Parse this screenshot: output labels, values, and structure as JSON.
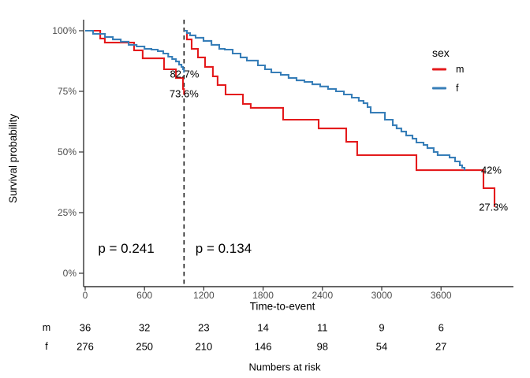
{
  "chart_data": {
    "type": "line",
    "subtype": "kaplan_meier_landmark_survival",
    "title": "",
    "xlabel": "Time-to-event",
    "ylabel": "Survival probability",
    "grid": false,
    "x_axis": {
      "ticks": [
        0,
        600,
        1200,
        1800,
        2400,
        3000,
        3600
      ],
      "range": [
        0,
        4340
      ]
    },
    "y_axis": {
      "ticks": [
        {
          "value": 0,
          "label": "0%"
        },
        {
          "value": 25,
          "label": "25%"
        },
        {
          "value": 50,
          "label": "50%"
        },
        {
          "value": 75,
          "label": "75%"
        },
        {
          "value": 100,
          "label": "100%"
        }
      ],
      "range": [
        0,
        100
      ]
    },
    "landmark_x": 1000,
    "legend": {
      "title": "sex",
      "position": "right",
      "items": [
        {
          "label": "m",
          "color": "#e41a1c"
        },
        {
          "label": "f",
          "color": "#377eb8"
        }
      ]
    },
    "series": [
      {
        "name": "m",
        "color": "#e41a1c",
        "segments": [
          [
            [
              0,
              100
            ],
            [
              152,
              96.8
            ],
            [
              199,
              95.1
            ],
            [
              495,
              91.9
            ],
            [
              582,
              88.6
            ],
            [
              798,
              84.1
            ],
            [
              918,
              80.5
            ],
            [
              989,
              76.0
            ],
            [
              1000,
              73.6
            ]
          ],
          [
            [
              1000,
              100
            ],
            [
              1029,
              96.4
            ],
            [
              1077,
              92.5
            ],
            [
              1141,
              89.0
            ],
            [
              1213,
              85.1
            ],
            [
              1292,
              81.2
            ],
            [
              1340,
              77.6
            ],
            [
              1420,
              73.7
            ],
            [
              1596,
              69.8
            ],
            [
              1675,
              68.2
            ],
            [
              2003,
              63.3
            ],
            [
              2362,
              59.7
            ],
            [
              2641,
              54.2
            ],
            [
              2752,
              48.7
            ],
            [
              3351,
              42.5
            ],
            [
              4029,
              35.1
            ],
            [
              4141,
              27.3
            ]
          ]
        ]
      },
      {
        "name": "f",
        "color": "#377eb8",
        "segments": [
          [
            [
              0,
              100
            ],
            [
              80,
              98.7
            ],
            [
              200,
              97.4
            ],
            [
              280,
              96.4
            ],
            [
              360,
              95.5
            ],
            [
              440,
              94.2
            ],
            [
              520,
              93.5
            ],
            [
              600,
              92.5
            ],
            [
              670,
              92.2
            ],
            [
              735,
              91.6
            ],
            [
              790,
              90.6
            ],
            [
              840,
              89.3
            ],
            [
              880,
              88.3
            ],
            [
              918,
              87.3
            ],
            [
              950,
              86.0
            ],
            [
              974,
              85.1
            ],
            [
              990,
              84.1
            ],
            [
              1000,
              82.7
            ]
          ],
          [
            [
              1000,
              100
            ],
            [
              1029,
              99.0
            ],
            [
              1061,
              98.1
            ],
            [
              1117,
              97.1
            ],
            [
              1197,
              95.8
            ],
            [
              1277,
              94.2
            ],
            [
              1356,
              92.5
            ],
            [
              1412,
              92.2
            ],
            [
              1492,
              90.6
            ],
            [
              1572,
              89.0
            ],
            [
              1636,
              87.7
            ],
            [
              1747,
              85.7
            ],
            [
              1819,
              84.1
            ],
            [
              1883,
              82.8
            ],
            [
              1979,
              81.8
            ],
            [
              2058,
              80.5
            ],
            [
              2138,
              79.5
            ],
            [
              2218,
              78.9
            ],
            [
              2298,
              77.9
            ],
            [
              2378,
              77.0
            ],
            [
              2457,
              76.0
            ],
            [
              2537,
              75.0
            ],
            [
              2617,
              73.7
            ],
            [
              2697,
              72.4
            ],
            [
              2768,
              71.1
            ],
            [
              2816,
              70.1
            ],
            [
              2856,
              68.5
            ],
            [
              2888,
              66.2
            ],
            [
              3032,
              63.3
            ],
            [
              3112,
              61.0
            ],
            [
              3151,
              59.7
            ],
            [
              3199,
              58.4
            ],
            [
              3247,
              56.8
            ],
            [
              3311,
              55.5
            ],
            [
              3351,
              53.9
            ],
            [
              3423,
              52.9
            ],
            [
              3462,
              51.6
            ],
            [
              3526,
              50.0
            ],
            [
              3566,
              48.7
            ],
            [
              3686,
              47.7
            ],
            [
              3742,
              46.1
            ],
            [
              3790,
              44.5
            ],
            [
              3814,
              43.5
            ],
            [
              3838,
              42.4
            ]
          ]
        ]
      }
    ],
    "annotations": [
      {
        "name": "landmark-survival-f",
        "text": "82.7%",
        "x": 1005,
        "y": 82.1,
        "anchor": "middle"
      },
      {
        "name": "landmark-survival-m",
        "text": "73.6%",
        "x": 1000,
        "y": 74.0,
        "anchor": "middle"
      },
      {
        "name": "end-survival-f",
        "text": "42%",
        "x": 4005,
        "y": 42.4,
        "anchor": "start"
      },
      {
        "name": "end-survival-m",
        "text": "27.3%",
        "x": 4130,
        "y": 27.3,
        "anchor": "middle"
      }
    ],
    "pvalues": [
      {
        "name": "pvalue-pre-landmark",
        "text": "p = 0.241",
        "x": 415,
        "y": 10.1
      },
      {
        "name": "pvalue-post-landmark",
        "text": "p = 0.134",
        "x": 1400,
        "y": 10.1
      }
    ],
    "risk_table": {
      "title": "Numbers at risk",
      "rows": [
        {
          "label": "m",
          "values": [
            "36",
            "32",
            "23",
            "14",
            "11",
            "9",
            "6"
          ]
        },
        {
          "label": "f",
          "values": [
            "276",
            "250",
            "210",
            "146",
            "98",
            "54",
            "27"
          ]
        }
      ]
    }
  }
}
